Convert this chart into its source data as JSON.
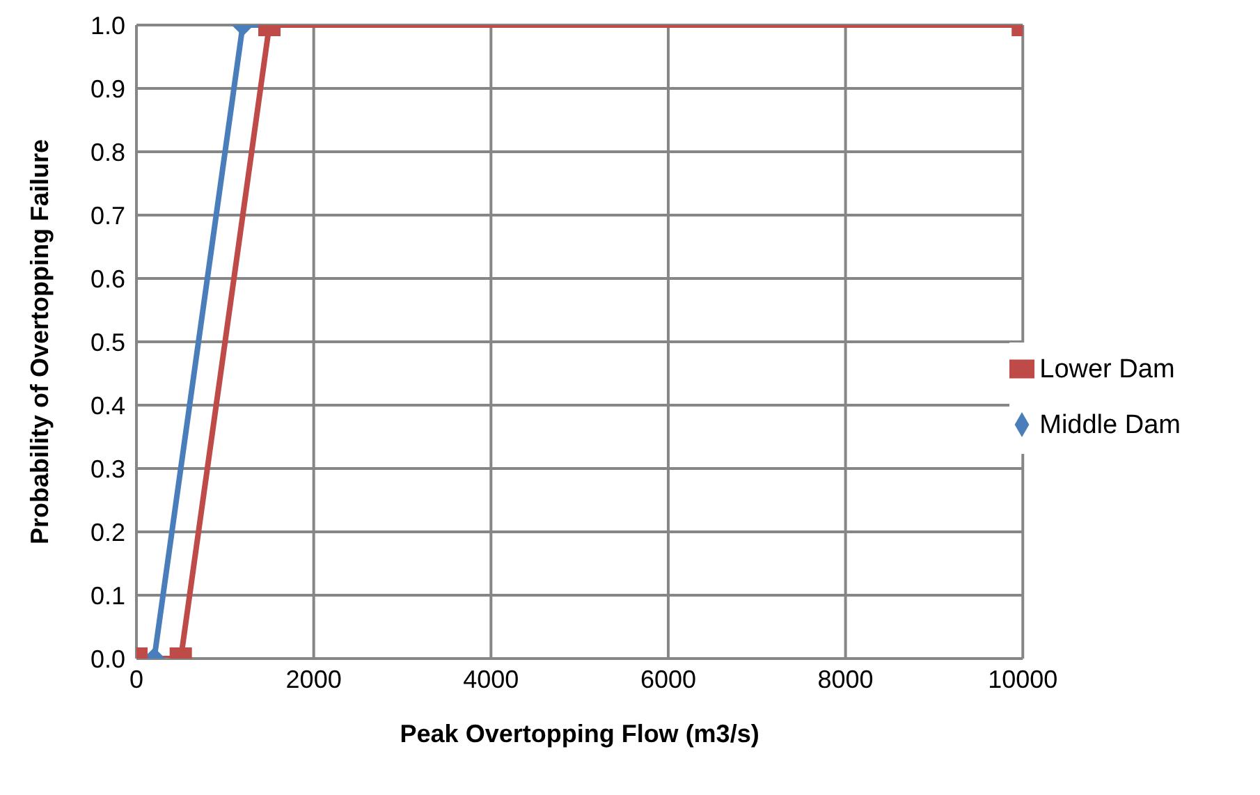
{
  "chart_data": {
    "type": "line",
    "xlabel": "Peak Overtopping Flow (m3/s)",
    "ylabel": "Probability of Overtopping Failure",
    "series": [
      {
        "name": "Middle Dam",
        "color": "#4a7ebb",
        "marker": "diamond",
        "x": [
          200,
          1200,
          10000
        ],
        "values": [
          0,
          1,
          1
        ]
      },
      {
        "name": "Lower Dam",
        "color": "#be4b48",
        "marker": "square",
        "x": [
          0,
          500,
          1500,
          10000
        ],
        "values": [
          0,
          0,
          1,
          1
        ]
      }
    ],
    "xlim": [
      0,
      10000
    ],
    "xticks": [
      0,
      2000,
      4000,
      6000,
      8000,
      10000
    ],
    "ylim": [
      0,
      1
    ],
    "yticks": [
      {
        "value": 0,
        "label": "0.0"
      },
      {
        "value": 0.1,
        "label": "0.1"
      },
      {
        "value": 0.2,
        "label": "0.2"
      },
      {
        "value": 0.3,
        "label": "0.3"
      },
      {
        "value": 0.4,
        "label": "0.4"
      },
      {
        "value": 0.5,
        "label": "0.5"
      },
      {
        "value": 0.6,
        "label": "0.6"
      },
      {
        "value": 0.7,
        "label": "0.7"
      },
      {
        "value": 0.8,
        "label": "0.8"
      },
      {
        "value": 0.9,
        "label": "0.9"
      },
      {
        "value": 1,
        "label": "1.0"
      }
    ],
    "grid": true,
    "legend": "right"
  }
}
